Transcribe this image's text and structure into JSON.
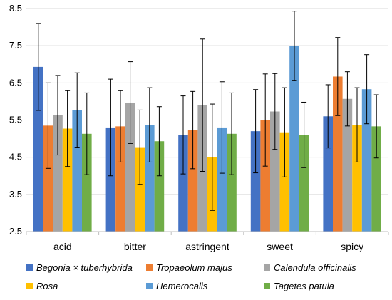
{
  "chart_data": {
    "type": "bar",
    "title": "",
    "xlabel": "",
    "ylabel": "",
    "ylim": [
      2.5,
      8.5
    ],
    "yticks": [
      2.5,
      3.5,
      4.5,
      5.5,
      6.5,
      7.5,
      8.5
    ],
    "grid": true,
    "legend_position": "bottom",
    "error_bars": true,
    "categories": [
      "acid",
      "bitter",
      "astringent",
      "sweet",
      "spicy"
    ],
    "series": [
      {
        "name": "Begonia × tuberhybrida",
        "color": "#4472C4",
        "values": [
          6.93,
          5.3,
          5.1,
          5.2,
          5.6
        ],
        "errors": [
          1.17,
          1.3,
          1.05,
          1.12,
          0.85
        ]
      },
      {
        "name": "Tropaeolum majus",
        "color": "#ED7D31",
        "values": [
          5.35,
          5.33,
          5.23,
          5.5,
          6.67
        ],
        "errors": [
          1.15,
          0.96,
          1.04,
          1.24,
          1.05
        ]
      },
      {
        "name": "Calendula officinalis",
        "color": "#A5A5A5",
        "values": [
          5.63,
          5.97,
          5.9,
          5.73,
          6.07
        ],
        "errors": [
          1.07,
          1.1,
          1.78,
          1.02,
          0.73
        ]
      },
      {
        "name": "Rosa",
        "color": "#FFC000",
        "values": [
          5.27,
          4.77,
          4.5,
          5.17,
          5.37
        ],
        "errors": [
          1.02,
          1.0,
          1.43,
          1.2,
          1.0
        ]
      },
      {
        "name": "Hemerocalis",
        "color": "#5B9BD5",
        "values": [
          5.77,
          5.37,
          5.3,
          7.5,
          6.33
        ],
        "errors": [
          1.0,
          1.0,
          1.23,
          0.93,
          0.93
        ]
      },
      {
        "name": "Tagetes patula",
        "color": "#70AD47",
        "values": [
          5.13,
          4.93,
          5.13,
          5.1,
          5.33
        ],
        "errors": [
          1.1,
          0.93,
          1.1,
          0.88,
          0.85
        ]
      }
    ]
  }
}
